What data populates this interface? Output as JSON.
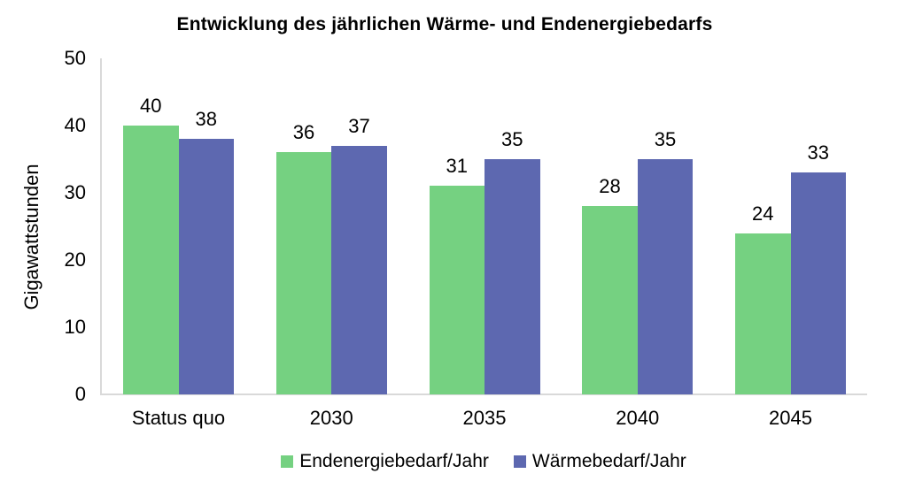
{
  "chart_data": {
    "type": "bar",
    "title": "Entwicklung des jährlichen Wärme- und Endenergiebedarfs",
    "categories": [
      "Status quo",
      "2030",
      "2035",
      "2040",
      "2045"
    ],
    "series": [
      {
        "name": "Endenergiebedarf/Jahr",
        "color": "#75d181",
        "values": [
          40,
          36,
          31,
          28,
          24
        ]
      },
      {
        "name": "Wärmebedarf/Jahr",
        "color": "#5d68b0",
        "values": [
          38,
          37,
          35,
          35,
          33
        ]
      }
    ],
    "xlabel": "",
    "ylabel": "Gigawattstunden",
    "ylim": [
      0,
      50
    ],
    "yticks": [
      0,
      10,
      20,
      30,
      40,
      50
    ],
    "grid": false,
    "legend_position": "bottom",
    "bar_labels": true,
    "axis_color": "#d9d9d9",
    "text_color": "#000000"
  }
}
